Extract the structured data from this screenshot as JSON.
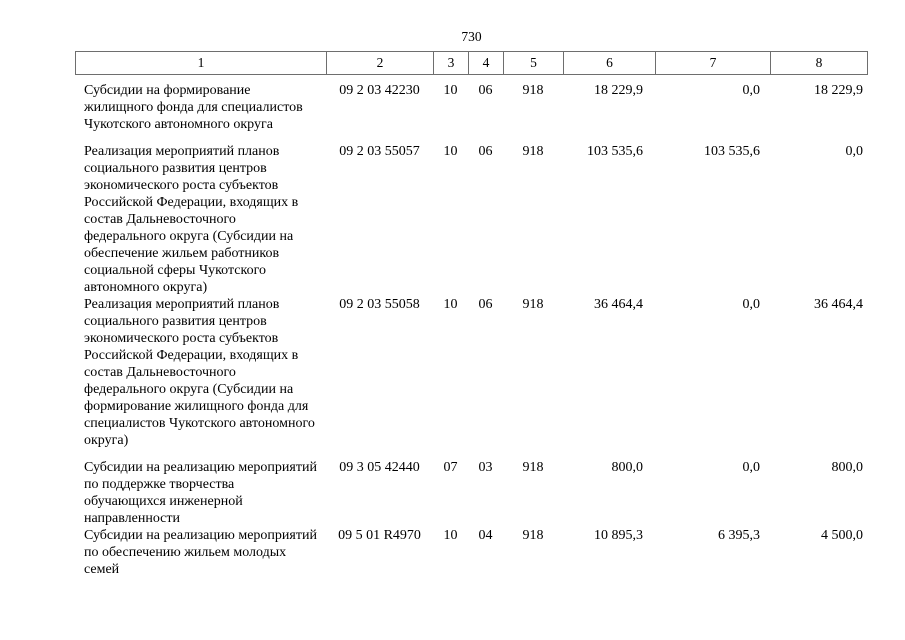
{
  "page_number": "730",
  "colors": {
    "background": "#ffffff",
    "text": "#000000",
    "table_border": "#6e6e6e"
  },
  "table": {
    "header": [
      "1",
      "2",
      "3",
      "4",
      "5",
      "6",
      "7",
      "8"
    ],
    "rows": [
      {
        "cells": [
          "Субсидии на формирование жилищного фонда для специалистов Чукотского автономного округа",
          "09 2 03 42230",
          "10",
          "06",
          "918",
          "18 229,9",
          "0,0",
          "18 229,9"
        ]
      },
      {
        "cells": [
          "Реализация мероприятий планов социального развития центров экономического роста субъектов Российской Федерации, входящих в состав Дальневосточного федерального округа (Субсидии на обеспечение жильем работников социальной сферы Чукотского автономного округа)",
          "09 2 03 55057",
          "10",
          "06",
          "918",
          "103 535,6",
          "103 535,6",
          "0,0"
        ]
      },
      {
        "cells": [
          "Реализация мероприятий планов социального развития центров экономического роста субъектов Российской Федерации, входящих в состав Дальневосточного федерального округа (Субсидии на формирование жилищного фонда для специалистов Чукотского автономного округа)",
          "09 2 03 55058",
          "10",
          "06",
          "918",
          "36 464,4",
          "0,0",
          "36 464,4"
        ]
      },
      {
        "cells": [
          "Субсидии на реализацию мероприятий по поддержке творчества обучающихся инженерной направленности",
          "09 3 05 42440",
          "07",
          "03",
          "918",
          "800,0",
          "0,0",
          "800,0"
        ]
      },
      {
        "cells": [
          "Субсидии на реализацию мероприятий по обеспечению жильем молодых семей",
          "09 5 01 R4970",
          "10",
          "04",
          "918",
          "10 895,3",
          "6 395,3",
          "4 500,0"
        ]
      }
    ]
  }
}
